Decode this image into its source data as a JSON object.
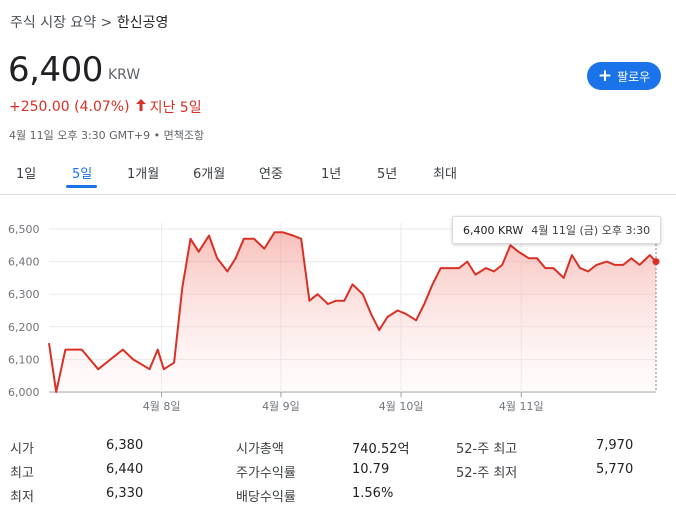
{
  "breadcrumb": {
    "parent": "주식 시장 요약",
    "separator": ">",
    "current": "한신공영"
  },
  "quote": {
    "price": "6,400",
    "currency": "KRW",
    "change": "+250.00 (4.07%)",
    "period": "지난 5일",
    "timestamp": "4월 11일 오후 3:30 GMT+9 • 면책조항"
  },
  "follow_button": {
    "label": "팔로우"
  },
  "tabs": [
    {
      "label": "1일",
      "active": false
    },
    {
      "label": "5일",
      "active": true
    },
    {
      "label": "1개월",
      "active": false
    },
    {
      "label": "6개월",
      "active": false
    },
    {
      "label": "연중",
      "active": false
    },
    {
      "label": "1년",
      "active": false
    },
    {
      "label": "5년",
      "active": false
    },
    {
      "label": "최대",
      "active": false
    }
  ],
  "tooltip": {
    "price": "6,400 KRW",
    "date": "4월 11일 (금) 오후 3:30"
  },
  "chart_data": {
    "type": "area",
    "ylim": [
      6000,
      6500
    ],
    "y_ticks": [
      "6,000",
      "6,100",
      "6,200",
      "6,300",
      "6,400",
      "6,500"
    ],
    "x_ticks": [
      "4월 8일",
      "4월 9일",
      "4월 10일",
      "4월 11일"
    ],
    "x_tick_positions": [
      5.49,
      11.31,
      17.17,
      23.03
    ],
    "xlim": [
      0,
      29.6
    ],
    "line_color": "#d93025",
    "fill_color": "#f8d0cc",
    "grid": true,
    "series": [
      {
        "x": [
          0,
          0.35,
          0.8,
          1.6,
          2.4,
          3.2,
          3.6,
          4.1,
          4.9,
          5.3,
          5.6,
          6.1,
          6.5,
          6.9,
          7.3,
          7.8,
          8.2,
          8.7,
          9.1,
          9.5,
          10,
          10.5,
          11,
          11.4,
          11.9,
          12.3,
          12.7,
          13.1,
          13.6,
          14,
          14.4,
          14.8,
          15.3,
          15.7,
          16.1,
          16.5,
          17,
          17.4,
          17.9,
          18.3,
          18.7,
          19.1,
          19.5,
          20,
          20.4,
          20.8,
          21.3,
          21.7,
          22.1,
          22.5,
          22.9,
          23.4,
          23.8,
          24.2,
          24.6,
          25.1,
          25.5,
          25.9,
          26.3,
          26.7,
          27.2,
          27.6,
          28,
          28.4,
          28.8,
          29.3,
          29.6
        ],
        "values": [
          6150,
          6000,
          6130,
          6130,
          6070,
          6110,
          6130,
          6100,
          6070,
          6130,
          6070,
          6090,
          6320,
          6470,
          6430,
          6480,
          6410,
          6370,
          6410,
          6470,
          6470,
          6440,
          6490,
          6490,
          6480,
          6470,
          6280,
          6300,
          6270,
          6280,
          6280,
          6330,
          6300,
          6240,
          6190,
          6230,
          6250,
          6240,
          6220,
          6270,
          6330,
          6380,
          6380,
          6380,
          6400,
          6360,
          6380,
          6370,
          6390,
          6450,
          6430,
          6410,
          6410,
          6380,
          6380,
          6350,
          6420,
          6380,
          6370,
          6390,
          6400,
          6390,
          6390,
          6410,
          6390,
          6420,
          6400
        ]
      }
    ]
  },
  "stats": {
    "col1": [
      {
        "label": "시가",
        "value": "6,380"
      },
      {
        "label": "최고",
        "value": "6,440"
      },
      {
        "label": "최저",
        "value": "6,330"
      }
    ],
    "col2": [
      {
        "label": "시가총액",
        "value": "740.52억"
      },
      {
        "label": "주가수익률",
        "value": "10.79"
      },
      {
        "label": "배당수익률",
        "value": "1.56%"
      }
    ],
    "col3": [
      {
        "label": "52-주 최고",
        "value": "7,970"
      },
      {
        "label": "52-주 최저",
        "value": "5,770"
      }
    ]
  }
}
